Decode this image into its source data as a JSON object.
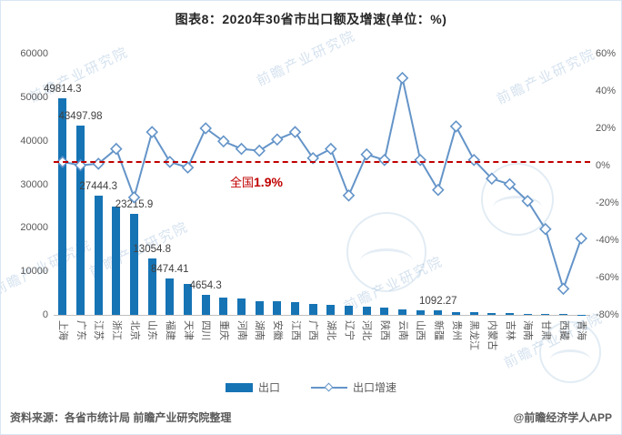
{
  "page": {
    "title": "图表8：2020年30省市出口额及增速(单位：%)"
  },
  "chart_data": {
    "type": "bar",
    "subtype": "combo-bar-line-dual-axis",
    "categories": [
      "上海",
      "广东",
      "江苏",
      "浙江",
      "北京",
      "山东",
      "福建",
      "天津",
      "四川",
      "重庆",
      "河南",
      "湖南",
      "安徽",
      "江西",
      "广西",
      "湖北",
      "辽宁",
      "河北",
      "陕西",
      "云南",
      "山西",
      "新疆",
      "贵州",
      "黑龙江",
      "内蒙古",
      "吉林",
      "海南",
      "甘肃",
      "西藏",
      "青海"
    ],
    "series": [
      {
        "name": "出口",
        "type": "bar",
        "axis": "left",
        "values": [
          49814.3,
          43497.98,
          27444.3,
          24800,
          23215.9,
          13054.8,
          8474.41,
          7100,
          4654.3,
          3900,
          3800,
          3200,
          3100,
          2900,
          2500,
          2300,
          2100,
          1900,
          1600,
          1300,
          1150,
          1092.27,
          700,
          600,
          450,
          380,
          300,
          250,
          150,
          100
        ]
      },
      {
        "name": "出口增速",
        "type": "line",
        "axis": "right",
        "values": [
          2,
          0.2,
          1,
          9,
          -17,
          18,
          2,
          -1,
          20,
          13,
          9,
          8,
          14,
          18,
          4,
          9,
          -16,
          6,
          3,
          47,
          3,
          -13,
          21,
          3,
          -7,
          -10,
          -19,
          -34,
          -66,
          -39
        ]
      }
    ],
    "bar_value_labels": [
      {
        "category": "上海",
        "text": "49814.3"
      },
      {
        "category": "广东",
        "text": "43497.98"
      },
      {
        "category": "江苏",
        "text": "27444.3"
      },
      {
        "category": "北京",
        "text": "23215.9"
      },
      {
        "category": "山东",
        "text": "13054.8"
      },
      {
        "category": "福建",
        "text": "8474.41"
      },
      {
        "category": "四川",
        "text": "4654.3"
      },
      {
        "category": "新疆",
        "text": "1092.27"
      }
    ],
    "left_axis": {
      "min": 0,
      "max": 60000,
      "step": 10000,
      "ticks": [
        "60000",
        "50000",
        "40000",
        "30000",
        "20000",
        "10000",
        "0"
      ]
    },
    "right_axis": {
      "min": -80,
      "max": 60,
      "step": 20,
      "ticks": [
        "60%",
        "40%",
        "20%",
        "0%",
        "-20%",
        "-40%",
        "-60%",
        "-80%"
      ]
    },
    "reference_line": {
      "value": 1.9,
      "prefix": "全国",
      "value_text": "1.9%"
    },
    "legend": [
      "出口",
      "出口增速"
    ],
    "grid": "off",
    "legend_position": "bottom",
    "colors": {
      "bar": "#1674b5",
      "line": "#6494c8",
      "reference": "#c00000"
    }
  },
  "footer": {
    "source": "资料来源：各省市统计局 前瞻产业研究院整理",
    "credit": "@前瞻经济学人APP"
  },
  "watermarks": {
    "text": "前瞻产业研究院"
  }
}
